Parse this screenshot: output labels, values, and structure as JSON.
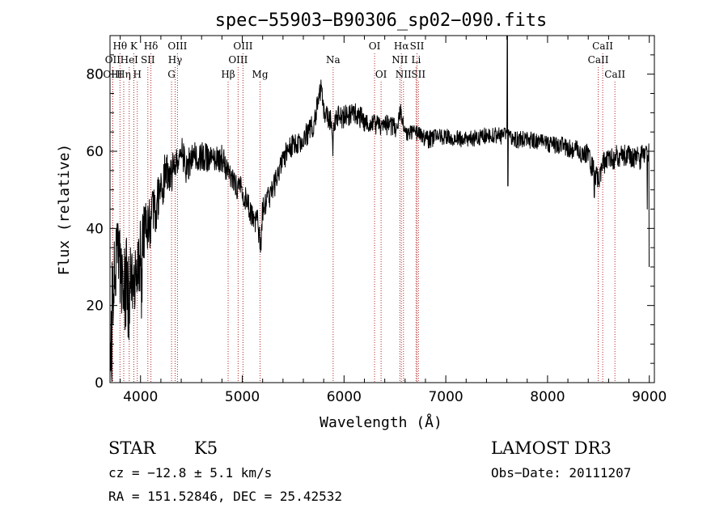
{
  "chart_data": {
    "type": "line",
    "title": "spec−55903−B90306_sp02−090.fits",
    "xlabel": "Wavelength (Å)",
    "ylabel": "Flux (relative)",
    "xlim": [
      3700,
      9050
    ],
    "ylim": [
      0,
      90
    ],
    "xticks": [
      4000,
      5000,
      6000,
      7000,
      8000,
      9000
    ],
    "yticks": [
      0,
      20,
      40,
      60,
      80
    ],
    "grid": false,
    "spectrum_anchors": {
      "wavelength": [
        3700,
        3720,
        3750,
        3800,
        3850,
        3900,
        3950,
        4000,
        4050,
        4100,
        4150,
        4200,
        4250,
        4300,
        4350,
        4400,
        4450,
        4500,
        4600,
        4700,
        4800,
        4900,
        5000,
        5100,
        5150,
        5180,
        5200,
        5300,
        5400,
        5500,
        5600,
        5700,
        5750,
        5780,
        5800,
        5850,
        5880,
        5890,
        5900,
        5950,
        6000,
        6100,
        6200,
        6300,
        6400,
        6500,
        6560,
        6600,
        6700,
        6800,
        7000,
        7200,
        7400,
        7600,
        7700,
        7800,
        8000,
        8200,
        8400,
        8450,
        8500,
        8550,
        8600,
        8650,
        8700,
        8800,
        8900,
        8950,
        9000
      ],
      "flux": [
        5,
        20,
        30,
        28,
        25,
        30,
        28,
        33,
        40,
        42,
        45,
        50,
        55,
        54,
        57,
        60,
        56,
        58,
        59,
        58,
        58,
        52,
        50,
        43,
        42,
        35,
        45,
        50,
        58,
        62,
        63,
        67,
        74,
        77,
        70,
        69,
        67,
        60,
        68,
        69,
        69,
        70,
        68,
        67,
        67,
        66,
        70,
        65,
        65,
        63,
        64,
        63,
        64,
        64,
        63,
        63,
        62,
        61,
        59,
        55,
        53,
        57,
        58,
        58,
        59,
        59,
        58,
        59,
        59
      ]
    },
    "noise_profile": {
      "wavelength": [
        3700,
        3850,
        4000,
        4100,
        4300,
        4600,
        5000,
        5500,
        6000,
        7000,
        8000,
        8500,
        9000
      ],
      "amplitude": [
        13,
        12,
        10,
        7,
        5,
        3.8,
        3.4,
        3.2,
        3,
        2.2,
        2.2,
        3,
        3
      ]
    },
    "features": [
      {
        "wavelength": 7605,
        "flux": 90,
        "kind": "spike"
      },
      {
        "wavelength": 7610,
        "flux": 51,
        "kind": "dip"
      },
      {
        "wavelength": 8460,
        "flux": 48,
        "kind": "dip"
      },
      {
        "wavelength": 8980,
        "flux": 45,
        "kind": "dip"
      },
      {
        "wavelength": 9000,
        "flux": 30,
        "kind": "dip"
      }
    ],
    "line_markers": [
      {
        "label": "Hθ",
        "wavelength": 3798,
        "row": 1
      },
      {
        "label": "OII",
        "wavelength": 3727,
        "row": 2
      },
      {
        "label": "OIII",
        "wavelength": 3727,
        "row": 3
      },
      {
        "label": "Hη",
        "wavelength": 3835,
        "row": 3
      },
      {
        "label": "HeI",
        "wavelength": 3889,
        "row": 2
      },
      {
        "label": "K",
        "wavelength": 3934,
        "row": 1
      },
      {
        "label": "H",
        "wavelength": 3968,
        "row": 3
      },
      {
        "label": "SII",
        "wavelength": 4072,
        "row": 2
      },
      {
        "label": "Hδ",
        "wavelength": 4102,
        "row": 1
      },
      {
        "label": "OIII",
        "wavelength": 4363,
        "row": 1
      },
      {
        "label": "Hγ",
        "wavelength": 4340,
        "row": 2
      },
      {
        "label": "G",
        "wavelength": 4305,
        "row": 3
      },
      {
        "label": "Hβ",
        "wavelength": 4861,
        "row": 3
      },
      {
        "label": "OIII",
        "wavelength": 4959,
        "row": 2
      },
      {
        "label": "OIII",
        "wavelength": 5007,
        "row": 1
      },
      {
        "label": "Mg",
        "wavelength": 5175,
        "row": 3
      },
      {
        "label": "Na",
        "wavelength": 5893,
        "row": 2
      },
      {
        "label": "OI",
        "wavelength": 6300,
        "row": 1
      },
      {
        "label": "OI",
        "wavelength": 6364,
        "row": 3
      },
      {
        "label": "Hα",
        "wavelength": 6563,
        "row": 1
      },
      {
        "label": "NII",
        "wavelength": 6548,
        "row": 2
      },
      {
        "label": "NII",
        "wavelength": 6584,
        "row": 3
      },
      {
        "label": "SII",
        "wavelength": 6717,
        "row": 1
      },
      {
        "label": "Li",
        "wavelength": 6708,
        "row": 2
      },
      {
        "label": "SII",
        "wavelength": 6731,
        "row": 3
      },
      {
        "label": "CaII",
        "wavelength": 8498,
        "row": 2
      },
      {
        "label": "CaII",
        "wavelength": 8542,
        "row": 1
      },
      {
        "label": "CaII",
        "wavelength": 8662,
        "row": 3
      }
    ]
  },
  "info": {
    "object_class": "STAR",
    "subclass": "K5",
    "redshift": "cz = −12.8 ± 5.1 km/s",
    "coordinates": "RA = 151.52846, DEC =  25.42532",
    "survey": "LAMOST DR3",
    "obs_date": "Obs−Date: 20111207"
  },
  "colors": {
    "line_marker": "#b22222",
    "spectrum": "#000000",
    "axes": "#000000"
  }
}
